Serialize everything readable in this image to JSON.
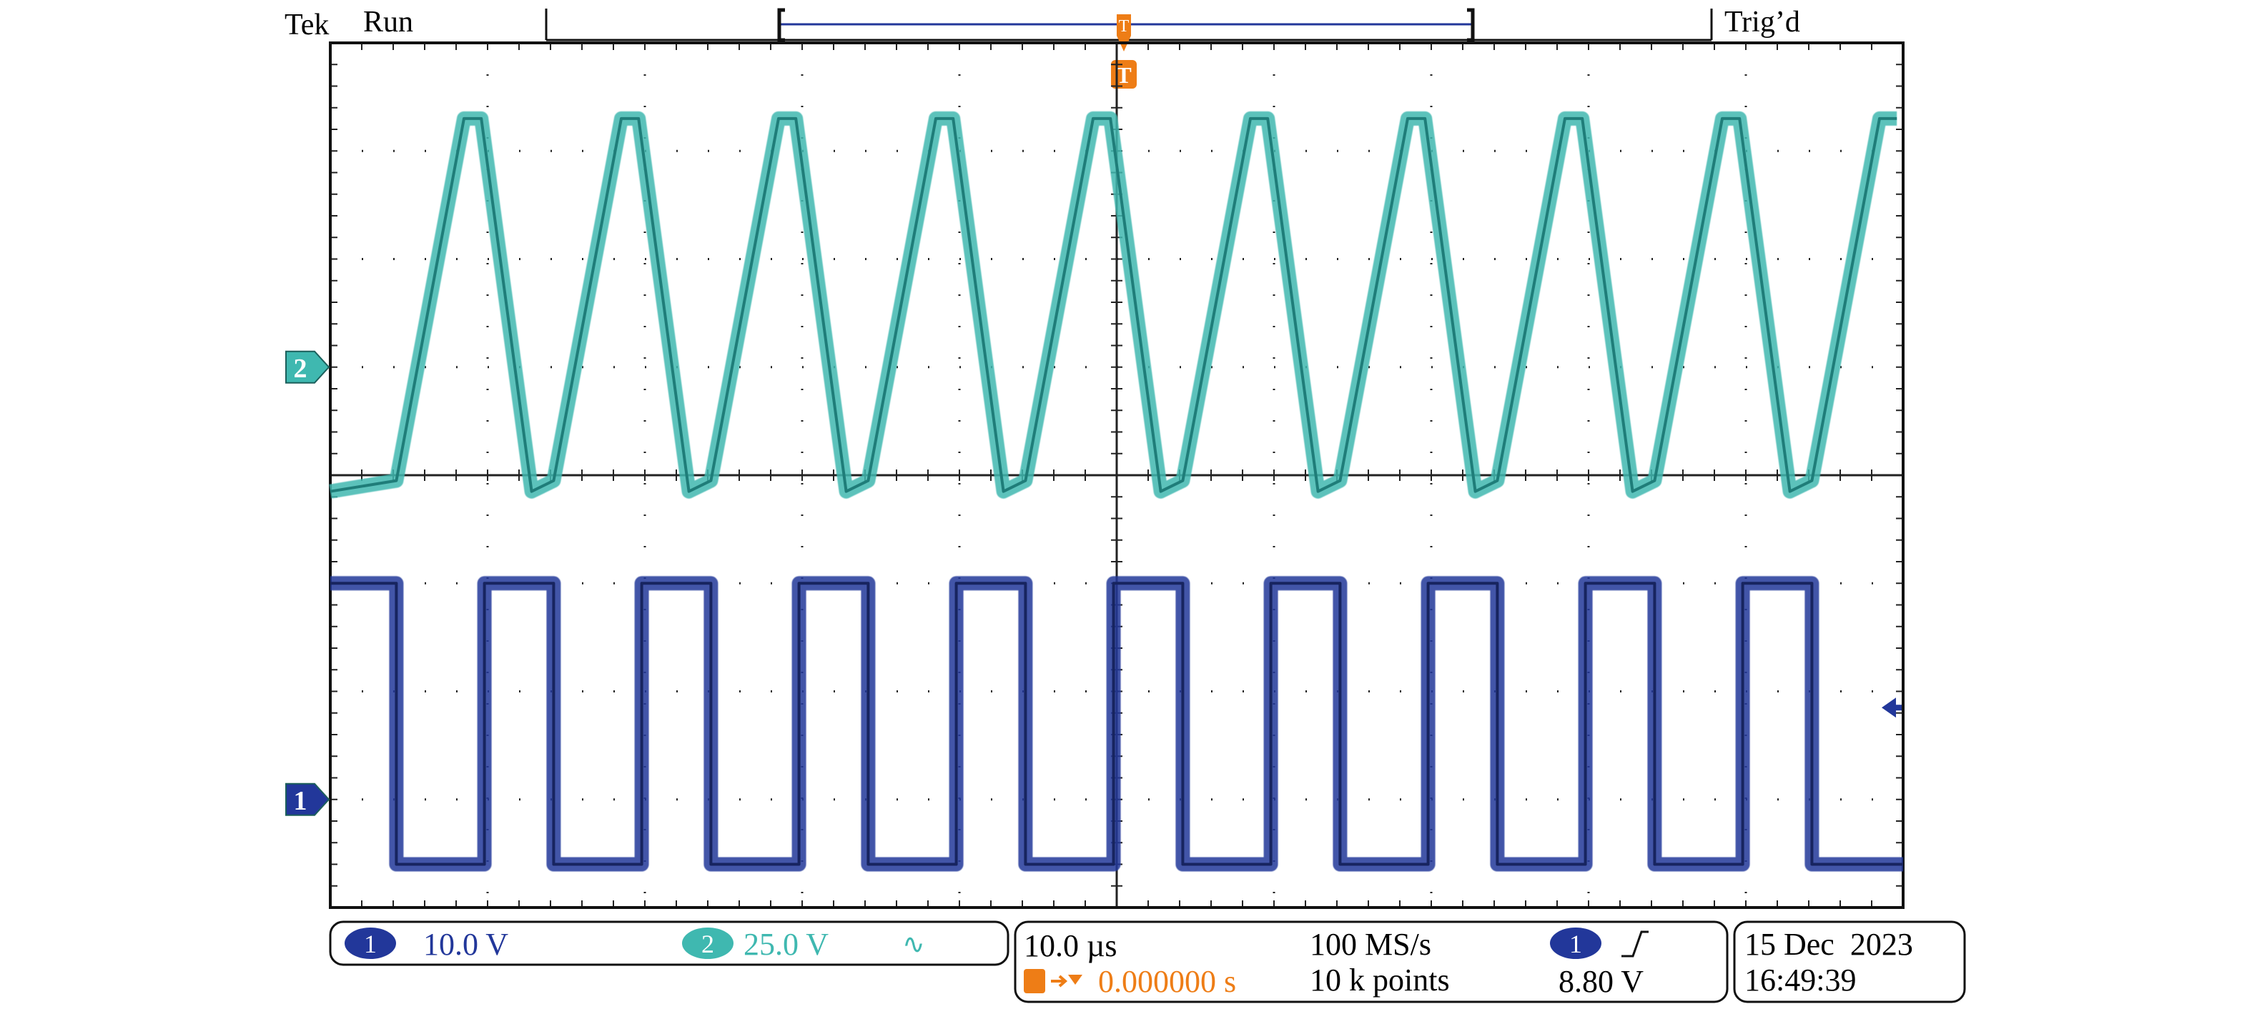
{
  "header": {
    "brand": "Tek",
    "status": "Run",
    "trigger_state": "Trig’d",
    "trigger_marker": "T"
  },
  "colors": {
    "ch1": "#22379a",
    "ch2": "#3fb8b0",
    "trigger": "#ee7d16",
    "grid": "#222222",
    "frame": "#111111"
  },
  "chart_data": {
    "type": "line",
    "title": "",
    "xlabel": "",
    "ylabel": "",
    "x_unit": "µs",
    "xlim": [
      -50,
      50
    ],
    "ylim": [
      -4,
      4
    ],
    "x_divisions": 10,
    "y_divisions": 8,
    "y_units": "divisions",
    "grid": true,
    "series": [
      {
        "channel": "2",
        "color": "#3fb8b0",
        "shape": "half-wave pulse train",
        "x": [
          -50,
          -45.8,
          -41.5,
          -40.4,
          -37.2,
          -35.8,
          -31.5,
          -30.4,
          -27.2,
          -25.8,
          -21.5,
          -20.4,
          -17.2,
          -15.8,
          -11.5,
          -10.4,
          -7.2,
          -5.8,
          -1.5,
          -0.4,
          2.8,
          4.2,
          8.5,
          9.6,
          12.8,
          14.2,
          18.5,
          19.6,
          22.8,
          24.2,
          28.5,
          29.6,
          32.8,
          34.2,
          38.5,
          39.6,
          42.8,
          44.2,
          48.5,
          49.6
        ],
        "y": [
          -0.15,
          -0.05,
          3.3,
          3.3,
          -0.15,
          -0.05,
          3.3,
          3.3,
          -0.15,
          -0.05,
          3.3,
          3.3,
          -0.15,
          -0.05,
          3.3,
          3.3,
          -0.15,
          -0.05,
          3.3,
          3.3,
          -0.15,
          -0.05,
          3.3,
          3.3,
          -0.15,
          -0.05,
          3.3,
          3.3,
          -0.15,
          -0.05,
          3.3,
          3.3,
          -0.15,
          -0.05,
          3.3,
          3.3,
          -0.15,
          -0.05,
          3.3,
          3.3
        ]
      },
      {
        "channel": "1",
        "color": "#22379a",
        "shape": "square wave",
        "x": [
          -50,
          -45.8,
          -45.8,
          -40.2,
          -40.2,
          -35.8,
          -35.8,
          -30.2,
          -30.2,
          -25.8,
          -25.8,
          -20.2,
          -20.2,
          -15.8,
          -15.8,
          -10.2,
          -10.2,
          -5.8,
          -5.8,
          -0.2,
          -0.2,
          4.2,
          4.2,
          9.8,
          9.8,
          14.2,
          14.2,
          19.8,
          19.8,
          24.2,
          24.2,
          29.8,
          29.8,
          34.2,
          34.2,
          39.8,
          39.8,
          44.2,
          44.2,
          50
        ],
        "y": [
          -1.0,
          -1.0,
          -3.6,
          -3.6,
          -1.0,
          -1.0,
          -3.6,
          -3.6,
          -1.0,
          -1.0,
          -3.6,
          -3.6,
          -1.0,
          -1.0,
          -3.6,
          -3.6,
          -1.0,
          -1.0,
          -3.6,
          -3.6,
          -1.0,
          -1.0,
          -3.6,
          -3.6,
          -1.0,
          -1.0,
          -3.6,
          -3.6,
          -1.0,
          -1.0,
          -3.6,
          -3.6,
          -1.0,
          -1.0,
          -3.6,
          -3.6,
          -1.0,
          -1.0,
          -3.6,
          -3.6
        ]
      }
    ],
    "markers": {
      "ch2_ground_level": 1.0,
      "ch1_ground_level": -3.0,
      "trigger_level": -2.15
    }
  },
  "channels": [
    {
      "number": "1",
      "scale": "10.0 V",
      "color": "#22379a"
    },
    {
      "number": "2",
      "scale": "25.0 V",
      "color": "#3fb8b0",
      "coupling_icon": "∿"
    }
  ],
  "timebase": {
    "scale": "10.0 µs",
    "position": "0.000000 s",
    "sample_rate": "100 MS/s",
    "record_length": "10 k points"
  },
  "trigger": {
    "source": "1",
    "slope_icon": "rising-edge-icon",
    "level": "8.80 V"
  },
  "datetime": {
    "date": "15 Dec  2023",
    "time": "16:49:39"
  }
}
